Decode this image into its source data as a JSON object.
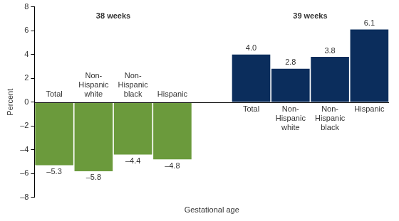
{
  "chart_data": {
    "type": "bar",
    "x_label": "Gestational age",
    "y_label": "Percent",
    "categories": [
      "Total",
      "Non-Hispanic white",
      "Non-Hispanic black",
      "Hispanic",
      null,
      "Total",
      "Non-Hispanic white",
      "Non-Hispanic black",
      "Hispanic"
    ],
    "series": [
      {
        "name": "38 weeks",
        "color": "#6b9a3c",
        "values": [
          -5.3,
          -5.8,
          -4.4,
          -4.8,
          null,
          null,
          null,
          null,
          null
        ],
        "value_labels": [
          "–5.3",
          "–5.8",
          "–4.4",
          "–4.8",
          null,
          null,
          null,
          null,
          null
        ]
      },
      {
        "name": "39 weeks",
        "color": "#0b2d5c",
        "values": [
          null,
          null,
          null,
          null,
          null,
          4.0,
          2.8,
          3.8,
          6.1
        ],
        "value_labels": [
          null,
          null,
          null,
          null,
          null,
          "4.0",
          "2.8",
          "3.8",
          "6.1"
        ]
      }
    ],
    "ylim": [
      -8,
      8
    ],
    "yticks": [
      {
        "value": -8,
        "label": "–8"
      },
      {
        "value": -6,
        "label": "–6"
      },
      {
        "value": -4,
        "label": "–4"
      },
      {
        "value": -2,
        "label": "–2"
      },
      0,
      2,
      4,
      6,
      8
    ],
    "grid": false,
    "data_labels": true,
    "tick_labels": "y"
  }
}
